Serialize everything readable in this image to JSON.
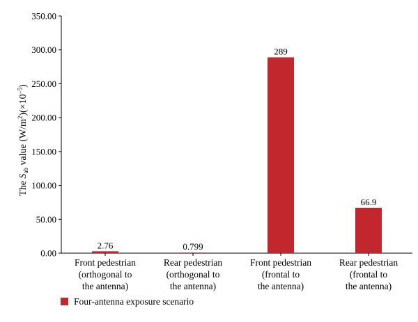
{
  "chart_data": {
    "type": "bar",
    "categories": [
      [
        "Front pedestrian",
        "(orthogonal to",
        "the antenna)"
      ],
      [
        "Rear pedestrian",
        "(orthogonal to",
        "the antenna)"
      ],
      [
        "Front pedestrian",
        "(frontal to",
        "the antenna)"
      ],
      [
        "Rear pedestrian",
        "(frontal to",
        "the antenna)"
      ]
    ],
    "series": [
      {
        "name": "Four-antenna exposure scenario",
        "values": [
          2.76,
          0.799,
          289,
          66.9
        ],
        "labels": [
          "2.76",
          "0.799",
          "289",
          "66.9"
        ],
        "color": "#c1272d"
      }
    ],
    "ylabel": {
      "prefix": "The ",
      "symbol": "S",
      "subscript": "ab",
      "suffix": " value (W/m",
      "power": "2",
      "suffix2": ")(×10",
      "exp": "−5",
      "suffix3": ")"
    },
    "yticks": [
      "0.00",
      "50.00",
      "100.00",
      "150.00",
      "200.00",
      "250.00",
      "300.00",
      "350.00"
    ],
    "ylim": [
      0,
      350
    ],
    "grid": false,
    "legend_position": "bottom-left"
  }
}
